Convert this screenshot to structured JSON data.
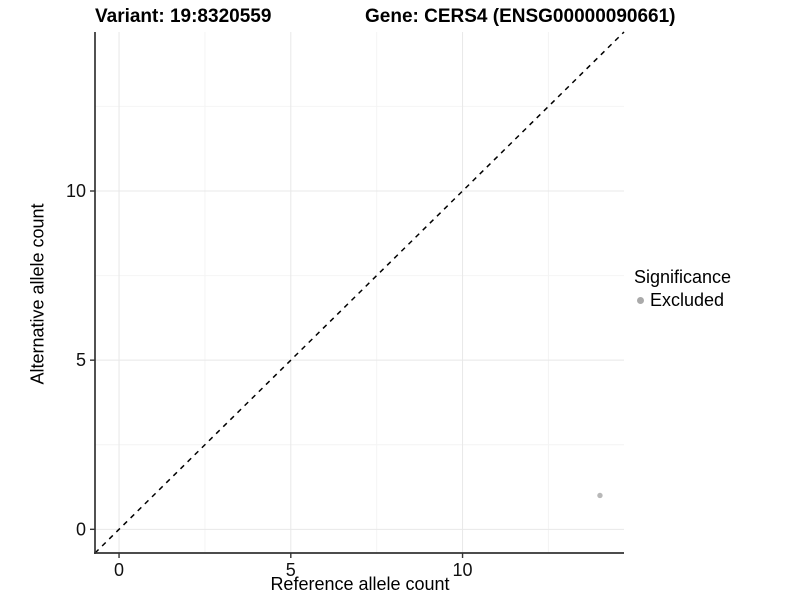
{
  "page": {
    "background": "#ffffff"
  },
  "titles": {
    "left": "Variant: 19:8320559",
    "right": "Gene: CERS4 (ENSG00000090661)"
  },
  "chart_data": {
    "type": "scatter",
    "xlabel": "Reference allele count",
    "ylabel": "Alternative allele count",
    "xlim": [
      -0.7,
      14.7
    ],
    "ylim": [
      -0.7,
      14.7
    ],
    "x_major_ticks": [
      0,
      5,
      10
    ],
    "x_minor_ticks": [
      2.5,
      7.5,
      12.5
    ],
    "y_major_ticks": [
      0,
      5,
      10
    ],
    "y_minor_ticks": [
      2.5,
      7.5,
      12.5
    ],
    "grid": true,
    "reference_line": {
      "type": "identity",
      "slope": 1,
      "intercept": 0,
      "style": "dashed",
      "color": "#000000"
    },
    "series": [
      {
        "name": "Excluded",
        "color": "#b8b8b8",
        "points": [
          {
            "x": 14,
            "y": 1
          }
        ]
      }
    ],
    "legend": {
      "title": "Significance",
      "position": "right",
      "items": [
        {
          "label": "Excluded",
          "color": "#aaaaaa",
          "marker": "circle"
        }
      ]
    }
  },
  "colors": {
    "axis": "#333333",
    "grid_major": "#e8e8e8",
    "grid_minor": "#f4f4f4",
    "text": "#111111"
  }
}
